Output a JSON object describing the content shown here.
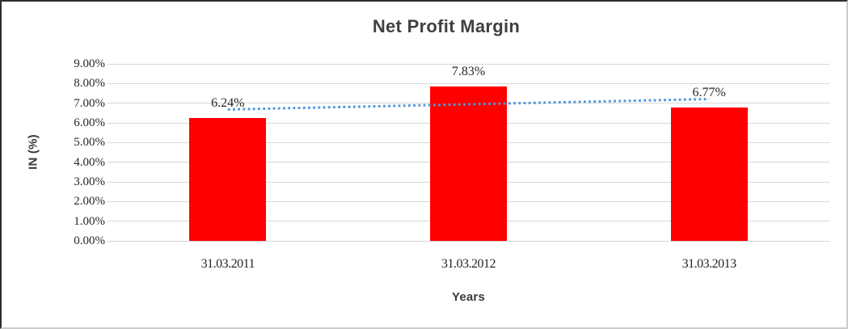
{
  "chart_data": {
    "type": "bar",
    "title": "Net Profit Margin",
    "xlabel": "Years",
    "ylabel": "IN (%)",
    "categories": [
      "31.03.2011",
      "31.03.2012",
      "31.03.2013"
    ],
    "values": [
      6.24,
      7.83,
      6.77
    ],
    "data_labels": [
      "6.24%",
      "7.83%",
      "6.77%"
    ],
    "ylim": [
      0,
      9
    ],
    "ytick_step": 1,
    "ytick_labels": [
      "0.00%",
      "1.00%",
      "2.00%",
      "3.00%",
      "4.00%",
      "5.00%",
      "6.00%",
      "7.00%",
      "8.00%",
      "9.00%"
    ],
    "grid": true,
    "legend": "none",
    "bar_color": "#ff0000",
    "gridline_color": "#d8d8d8",
    "trendline": {
      "style": "dotted",
      "color": "#4f96d8",
      "start_value": 6.68,
      "end_value": 7.21
    }
  }
}
